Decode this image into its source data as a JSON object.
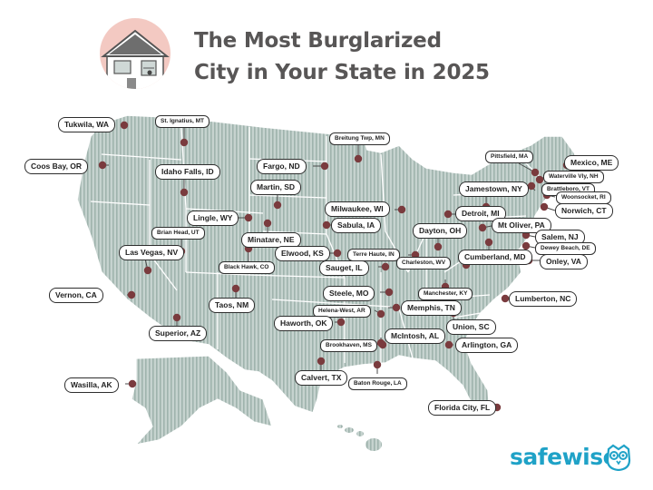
{
  "header": {
    "title_line1": "The Most Burglarized",
    "title_line2": "City in Your State in 2025"
  },
  "logo": {
    "text": "safewise",
    "icon": "owl-icon",
    "color": "#1fa2c7"
  },
  "colors": {
    "title": "#585656",
    "map_fill": "#b8c7c2",
    "map_stripe": "#9fb3ad",
    "dot": "#7a3b3e",
    "house_circle": "#f3c9c2"
  },
  "cities": [
    {
      "label": "Tukwila, WA"
    },
    {
      "label": "St. Ignatius, MT"
    },
    {
      "label": "Coos Bay, OR"
    },
    {
      "label": "Idaho Falls, ID"
    },
    {
      "label": "Breitung Twp, MN"
    },
    {
      "label": "Fargo, ND"
    },
    {
      "label": "Martin, SD"
    },
    {
      "label": "Pittsfield, MA"
    },
    {
      "label": "Mexico, ME"
    },
    {
      "label": "Waterville Vly, NH"
    },
    {
      "label": "Brattleboro, VT"
    },
    {
      "label": "Woonsocket, RI"
    },
    {
      "label": "Jamestown, NY"
    },
    {
      "label": "Norwich, CT"
    },
    {
      "label": "Milwaukee, WI"
    },
    {
      "label": "Detroit, MI"
    },
    {
      "label": "Lingle, WY"
    },
    {
      "label": "Sabula, IA"
    },
    {
      "label": "Mt Oliver, PA"
    },
    {
      "label": "Brian Head, UT"
    },
    {
      "label": "Minatare, NE"
    },
    {
      "label": "Dayton, OH"
    },
    {
      "label": "Salem, NJ"
    },
    {
      "label": "Dewey Beach, DE"
    },
    {
      "label": "Las Vegas, NV"
    },
    {
      "label": "Elwood, KS"
    },
    {
      "label": "Terre Haute, IN"
    },
    {
      "label": "Cumberland, MD"
    },
    {
      "label": "Onley, VA"
    },
    {
      "label": "Black Hawk, CO"
    },
    {
      "label": "Sauget, IL"
    },
    {
      "label": "Charleston, WV"
    },
    {
      "label": "Vernon, CA"
    },
    {
      "label": "Steele, MO"
    },
    {
      "label": "Manchester, KY"
    },
    {
      "label": "Lumberton, NC"
    },
    {
      "label": "Taos, NM"
    },
    {
      "label": "Helena-West, AR"
    },
    {
      "label": "Memphis, TN"
    },
    {
      "label": "Haworth, OK"
    },
    {
      "label": "Union, SC"
    },
    {
      "label": "Superior, AZ"
    },
    {
      "label": "McIntosh, AL"
    },
    {
      "label": "Brookhaven, MS"
    },
    {
      "label": "Arlington, GA"
    },
    {
      "label": "Calvert, TX"
    },
    {
      "label": "Wasilla, AK"
    },
    {
      "label": "Baton Rouge, LA"
    },
    {
      "label": "Florida City, FL"
    }
  ]
}
